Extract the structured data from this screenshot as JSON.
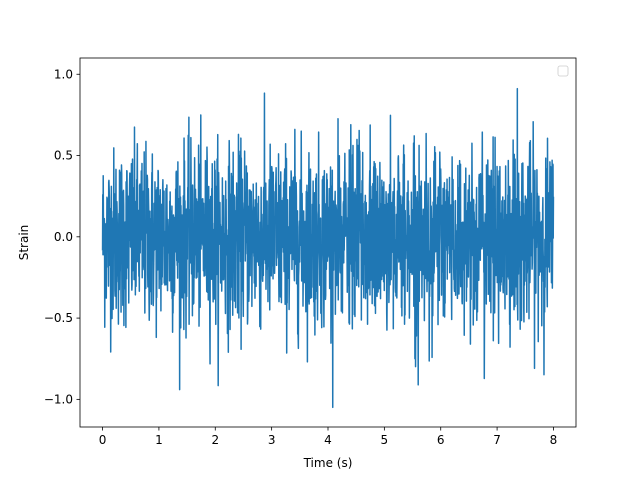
{
  "chart_data": {
    "type": "line",
    "title": "",
    "xlabel": "Time (s)",
    "ylabel": "Strain",
    "xlim": [
      -0.4,
      8.4
    ],
    "ylim": [
      -1.17,
      1.1
    ],
    "xticks": [
      0,
      1,
      2,
      3,
      4,
      5,
      6,
      7,
      8
    ],
    "xtick_labels": [
      "0",
      "1",
      "2",
      "3",
      "4",
      "5",
      "6",
      "7",
      "8"
    ],
    "yticks": [
      -1.0,
      -0.5,
      0.0,
      0.5,
      1.0
    ],
    "ytick_labels": [
      "−1.0",
      "−0.5",
      "0.0",
      "0.5",
      "1.0"
    ],
    "grid": false,
    "legend": {
      "placement": "upper right",
      "entries": []
    },
    "series": [
      {
        "color": "#1f77b4",
        "x_range": [
          0,
          8
        ],
        "samples": 2048,
        "envelope": {
          "typical_max": 0.6,
          "typical_min": -0.6,
          "peak_max": 0.93,
          "peak_min": -1.07
        }
      }
    ]
  }
}
